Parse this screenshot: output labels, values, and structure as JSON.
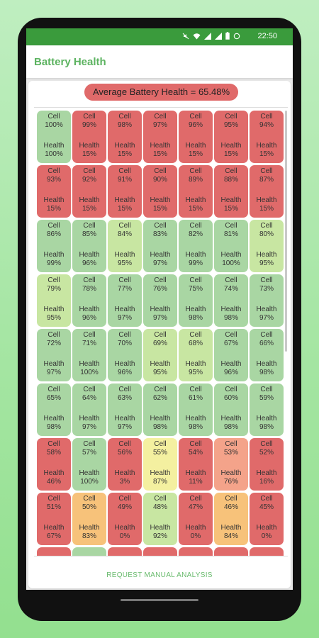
{
  "status_bar": {
    "time": "22:50"
  },
  "app_bar": {
    "title": "Battery Health"
  },
  "summary": {
    "average_label": "Average Battery Health = 65.48%"
  },
  "footer": {
    "button_label": "REQUEST MANUAL ANALYSIS"
  },
  "labels": {
    "cell": "Cell",
    "health": "Health"
  },
  "colors": {
    "red": "#e06a6a",
    "green": "#a9d6a3",
    "light_green": "#c8e6a2",
    "yellow": "#f4f0a0",
    "orange": "#f7c27a",
    "salmon": "#f4a38a",
    "status_bar": "#3a9b3c"
  },
  "cells": [
    {
      "cell": "100%",
      "health": "100%",
      "color": "green"
    },
    {
      "cell": "99%",
      "health": "15%",
      "color": "red"
    },
    {
      "cell": "98%",
      "health": "15%",
      "color": "red"
    },
    {
      "cell": "97%",
      "health": "15%",
      "color": "red"
    },
    {
      "cell": "96%",
      "health": "15%",
      "color": "red"
    },
    {
      "cell": "95%",
      "health": "15%",
      "color": "red"
    },
    {
      "cell": "94%",
      "health": "15%",
      "color": "red"
    },
    {
      "cell": "93%",
      "health": "15%",
      "color": "red"
    },
    {
      "cell": "92%",
      "health": "15%",
      "color": "red"
    },
    {
      "cell": "91%",
      "health": "15%",
      "color": "red"
    },
    {
      "cell": "90%",
      "health": "15%",
      "color": "red"
    },
    {
      "cell": "89%",
      "health": "15%",
      "color": "red"
    },
    {
      "cell": "88%",
      "health": "15%",
      "color": "red"
    },
    {
      "cell": "87%",
      "health": "15%",
      "color": "red"
    },
    {
      "cell": "86%",
      "health": "99%",
      "color": "green"
    },
    {
      "cell": "85%",
      "health": "96%",
      "color": "green"
    },
    {
      "cell": "84%",
      "health": "95%",
      "color": "light_green"
    },
    {
      "cell": "83%",
      "health": "97%",
      "color": "green"
    },
    {
      "cell": "82%",
      "health": "99%",
      "color": "green"
    },
    {
      "cell": "81%",
      "health": "100%",
      "color": "green"
    },
    {
      "cell": "80%",
      "health": "95%",
      "color": "light_green"
    },
    {
      "cell": "79%",
      "health": "95%",
      "color": "light_green"
    },
    {
      "cell": "78%",
      "health": "96%",
      "color": "green"
    },
    {
      "cell": "77%",
      "health": "97%",
      "color": "green"
    },
    {
      "cell": "76%",
      "health": "97%",
      "color": "green"
    },
    {
      "cell": "75%",
      "health": "98%",
      "color": "green"
    },
    {
      "cell": "74%",
      "health": "98%",
      "color": "green"
    },
    {
      "cell": "73%",
      "health": "97%",
      "color": "green"
    },
    {
      "cell": "72%",
      "health": "97%",
      "color": "green"
    },
    {
      "cell": "71%",
      "health": "100%",
      "color": "green"
    },
    {
      "cell": "70%",
      "health": "96%",
      "color": "green"
    },
    {
      "cell": "69%",
      "health": "95%",
      "color": "light_green"
    },
    {
      "cell": "68%",
      "health": "95%",
      "color": "light_green"
    },
    {
      "cell": "67%",
      "health": "96%",
      "color": "green"
    },
    {
      "cell": "66%",
      "health": "98%",
      "color": "green"
    },
    {
      "cell": "65%",
      "health": "98%",
      "color": "green"
    },
    {
      "cell": "64%",
      "health": "97%",
      "color": "green"
    },
    {
      "cell": "63%",
      "health": "97%",
      "color": "green"
    },
    {
      "cell": "62%",
      "health": "98%",
      "color": "green"
    },
    {
      "cell": "61%",
      "health": "98%",
      "color": "green"
    },
    {
      "cell": "60%",
      "health": "98%",
      "color": "green"
    },
    {
      "cell": "59%",
      "health": "98%",
      "color": "green"
    },
    {
      "cell": "58%",
      "health": "46%",
      "color": "red"
    },
    {
      "cell": "57%",
      "health": "100%",
      "color": "green"
    },
    {
      "cell": "56%",
      "health": "3%",
      "color": "red"
    },
    {
      "cell": "55%",
      "health": "87%",
      "color": "yellow"
    },
    {
      "cell": "54%",
      "health": "11%",
      "color": "red"
    },
    {
      "cell": "53%",
      "health": "76%",
      "color": "salmon"
    },
    {
      "cell": "52%",
      "health": "16%",
      "color": "red"
    },
    {
      "cell": "51%",
      "health": "67%",
      "color": "red"
    },
    {
      "cell": "50%",
      "health": "83%",
      "color": "orange"
    },
    {
      "cell": "49%",
      "health": "0%",
      "color": "red"
    },
    {
      "cell": "48%",
      "health": "92%",
      "color": "light_green"
    },
    {
      "cell": "47%",
      "health": "0%",
      "color": "red"
    },
    {
      "cell": "46%",
      "health": "84%",
      "color": "orange"
    },
    {
      "cell": "45%",
      "health": "0%",
      "color": "red"
    },
    {
      "cell": "",
      "health": "",
      "color": "red"
    },
    {
      "cell": "",
      "health": "",
      "color": "green"
    },
    {
      "cell": "",
      "health": "",
      "color": "red"
    },
    {
      "cell": "",
      "health": "",
      "color": "red"
    },
    {
      "cell": "",
      "health": "",
      "color": "red"
    },
    {
      "cell": "",
      "health": "",
      "color": "red"
    },
    {
      "cell": "",
      "health": "",
      "color": "red"
    }
  ]
}
